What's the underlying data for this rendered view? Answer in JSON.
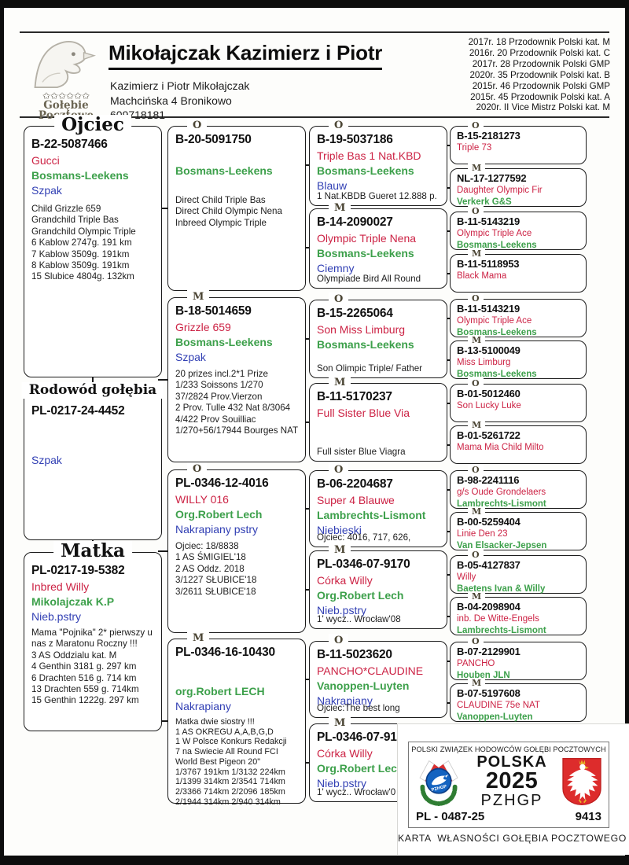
{
  "header": {
    "logo": {
      "stars": "✩✩✩✩✩✩",
      "word1": "Gołębie",
      "word2": "Pocztowe"
    },
    "title": "Mikołajczak Kazimierz i Piotr",
    "subtitle": "Kazimierz i Piotr Mikołajczak\nMachcińska 4 Bronikowo\n609718181",
    "achievements": "2017r. 18 Przodownik Polski kat. M\n2016r. 20 Przodownik Polski kat. C\n2017r. 28 Przodownik Polski GMP\n2020r. 35 Przodownik Polski kat. B\n2015r. 46 Przodownik Polski GMP\n2015r. 45 Przodownik Polski kat. A\n2020r. II Vice Mistrz Polski kat. M"
  },
  "labels": {
    "father": "Ojciec",
    "subject": "Rodowód gołębia",
    "mother": "Matka"
  },
  "father": {
    "ring": "B-22-5087466",
    "name": "Gucci",
    "breeder": "Bosmans-Leekens",
    "color": "Szpak",
    "info": "Child Grizzle 659\nGrandchild Triple Bas\nGrandchild Olympic Triple\n6 Kablow 2747g. 191 km\n7 Kablow 3509g.  191km\n8 Kablow 3509g.  191km\n15 Slubice 4804g. 132km"
  },
  "subject": {
    "ring": "PL-0217-24-4452",
    "color": "Szpak"
  },
  "mother": {
    "ring": "PL-0217-19-5382",
    "name": "Inbred Willy",
    "breeder": "Mikolajczak K.P",
    "color": "Nieb.pstry",
    "info": "Mama \"Pojnika\" 2* pierwszy u\nnas z Maratonu Roczny !!!\n3 AS Oddzialu kat. M\n4 Genthin 3181 g. 297 km\n6 Drachten 516 g. 714 km\n13 Drachten 559 g. 714km\n15 Genthin 1222g. 297 km"
  },
  "g2": [
    {
      "tag": "O",
      "ring": "B-20-5091750",
      "breeder": "Bosmans-Leekens",
      "info": "Direct Child Triple Bas\nDirect Child Olympic Nena\nInbreed Olympic Triple"
    },
    {
      "tag": "M",
      "ring": "B-18-5014659",
      "name": "Grizzle 659",
      "breeder": "Bosmans-Leekens",
      "color": "Szpak",
      "info": "20 prizes incl.2*1 Prize\n1/233 Soissons 1/270\n37/2824 Prov.Vierzon\n2 Prov. Tulle 432  Nat 8/3064\n4/422 Prov Souilliac\n1/270+56/17944 Bourges NAT"
    },
    {
      "tag": "O",
      "ring": "PL-0346-12-4016",
      "name": "WILLY 016",
      "breeder": "Org.Robert Lech",
      "color": "Nakrapiany pstry",
      "info": "Ojciec: 18/8838\n1 AS ŚMIGIEL'18\n2 AS Oddz. 2018\n3/1227 SŁUBICE'18\n3/2611 SŁUBICE'18"
    },
    {
      "tag": "M",
      "ring": "PL-0346-16-10430",
      "breeder": "org.Robert LECH",
      "color": "Nakrapiany",
      "info": "Matka dwie siostry !!!\n1 AS OKREGU A,A,B,G,D\n1 W Polsce Konkurs Redakcji\n7 na Swiecie All Round FCI\nWorld Best Pigeon 20\"\n1/3767 191km 1/3132  224km\n1/1399 314km 2/3541 714km\n2/3366 714km 2/2096 185km\n2/1944 314km 2/940 314km"
    }
  ],
  "g3": [
    {
      "tag": "O",
      "ring": "B-19-5037186",
      "name": "Triple Bas 1 Nat.KBD",
      "breeder": "Bosmans-Leekens",
      "color": "Blauw",
      "info": "1 Nat.KBDB Gueret 12.888 p."
    },
    {
      "tag": "M",
      "ring": "B-14-2090027",
      "name": "Olympic Triple Nena",
      "breeder": "Bosmans-Leekens",
      "color": "Ciemny",
      "info": "Olympiade Bird All Round"
    },
    {
      "tag": "O",
      "ring": "B-15-2265064",
      "name": "Son Miss Limburg",
      "breeder": "Bosmans-Leekens",
      "info": "Son Olimpic Triple/ Father"
    },
    {
      "tag": "M",
      "ring": "B-11-5170237",
      "name": "Full Sister Blue Via",
      "info": "Full sister Blue Viagra"
    },
    {
      "tag": "O",
      "ring": "B-06-2204687",
      "name": "Super 4 Blauwe",
      "breeder": "Lambrechts-Lismont",
      "color": "Niebieski",
      "info": "Ojciec: 4016, 717, 626,"
    },
    {
      "tag": "M",
      "ring": "PL-0346-07-9170",
      "name": "Córka Willy",
      "breeder": "Org.Robert Lech",
      "color": "Nieb.pstry",
      "info": "1' wycz.. Wrocław'08"
    },
    {
      "tag": "O",
      "ring": "B-11-5023620",
      "name": "PANCHO*CLAUDINE",
      "breeder": "Vanoppen-Luyten",
      "color": "Nakrapiany",
      "info": "Ojciec:The best long"
    },
    {
      "tag": "M",
      "ring": "PL-0346-07-91",
      "name": "Córka Willy",
      "breeder": "Org.Robert Lec",
      "color": "Nieb.pstry",
      "info": "1' wycz.. Wrocław'0"
    }
  ],
  "g4": [
    {
      "tag": "O",
      "ring": "B-15-2181273",
      "name": "Triple 73"
    },
    {
      "tag": "M",
      "ring": "NL-17-1277592",
      "name": "Daughter Olympic Fir",
      "breeder": "Verkerk G&S"
    },
    {
      "tag": "O",
      "ring": "B-11-5143219",
      "name": "Olympic Triple Ace",
      "breeder": "Bosmans-Leekens"
    },
    {
      "tag": "M",
      "ring": "B-11-5118953",
      "name": "Black Mama"
    },
    {
      "tag": "O",
      "ring": "B-11-5143219",
      "name": "Olympic Triple Ace",
      "breeder": "Bosmans-Leekens"
    },
    {
      "tag": "M",
      "ring": "B-13-5100049",
      "name": "Miss Limburg",
      "breeder": "Bosmans-Leekens"
    },
    {
      "tag": "O",
      "ring": "B-01-5012460",
      "name": "Son Lucky Luke"
    },
    {
      "tag": "M",
      "ring": "B-01-5261722",
      "name": "Mama Mia Child Milto"
    },
    {
      "tag": "O",
      "ring": "B-98-2241116",
      "name": "g/s Oude Grondelaers",
      "breeder": "Lambrechts-Lismont"
    },
    {
      "tag": "M",
      "ring": "B-00-5259404",
      "name": "Linie Den 23",
      "breeder": "Van Elsacker-Jepsen"
    },
    {
      "tag": "O",
      "ring": "B-05-4127837",
      "name": "Willy",
      "breeder": "Baetens Ivan & Willy"
    },
    {
      "tag": "M",
      "ring": "B-04-2098904",
      "name": "inb. De Witte-Engels",
      "breeder": "Lambrechts-Lismont"
    },
    {
      "tag": "O",
      "ring": "B-07-2129901",
      "name": "PANCHO",
      "breeder": "Houben JLN"
    },
    {
      "tag": "M",
      "ring": "B-07-5197608",
      "name": "CLAUDINE 75e NAT",
      "breeder": "Vanoppen-Luyten"
    }
  ],
  "stamp": {
    "federation": "POLSKI ZWIĄZEK HODOWCÓW GOŁĘBI POCZTOWYCH",
    "country": "POLSKA",
    "year": "2025",
    "org": "PZHGP",
    "logo_text": "PZHGP",
    "ring_code": "PL - 0487-25",
    "serial": "9413",
    "caption": "KARTA  WŁASNOŚCI GOŁĘBIA POCZTOWEGO"
  }
}
